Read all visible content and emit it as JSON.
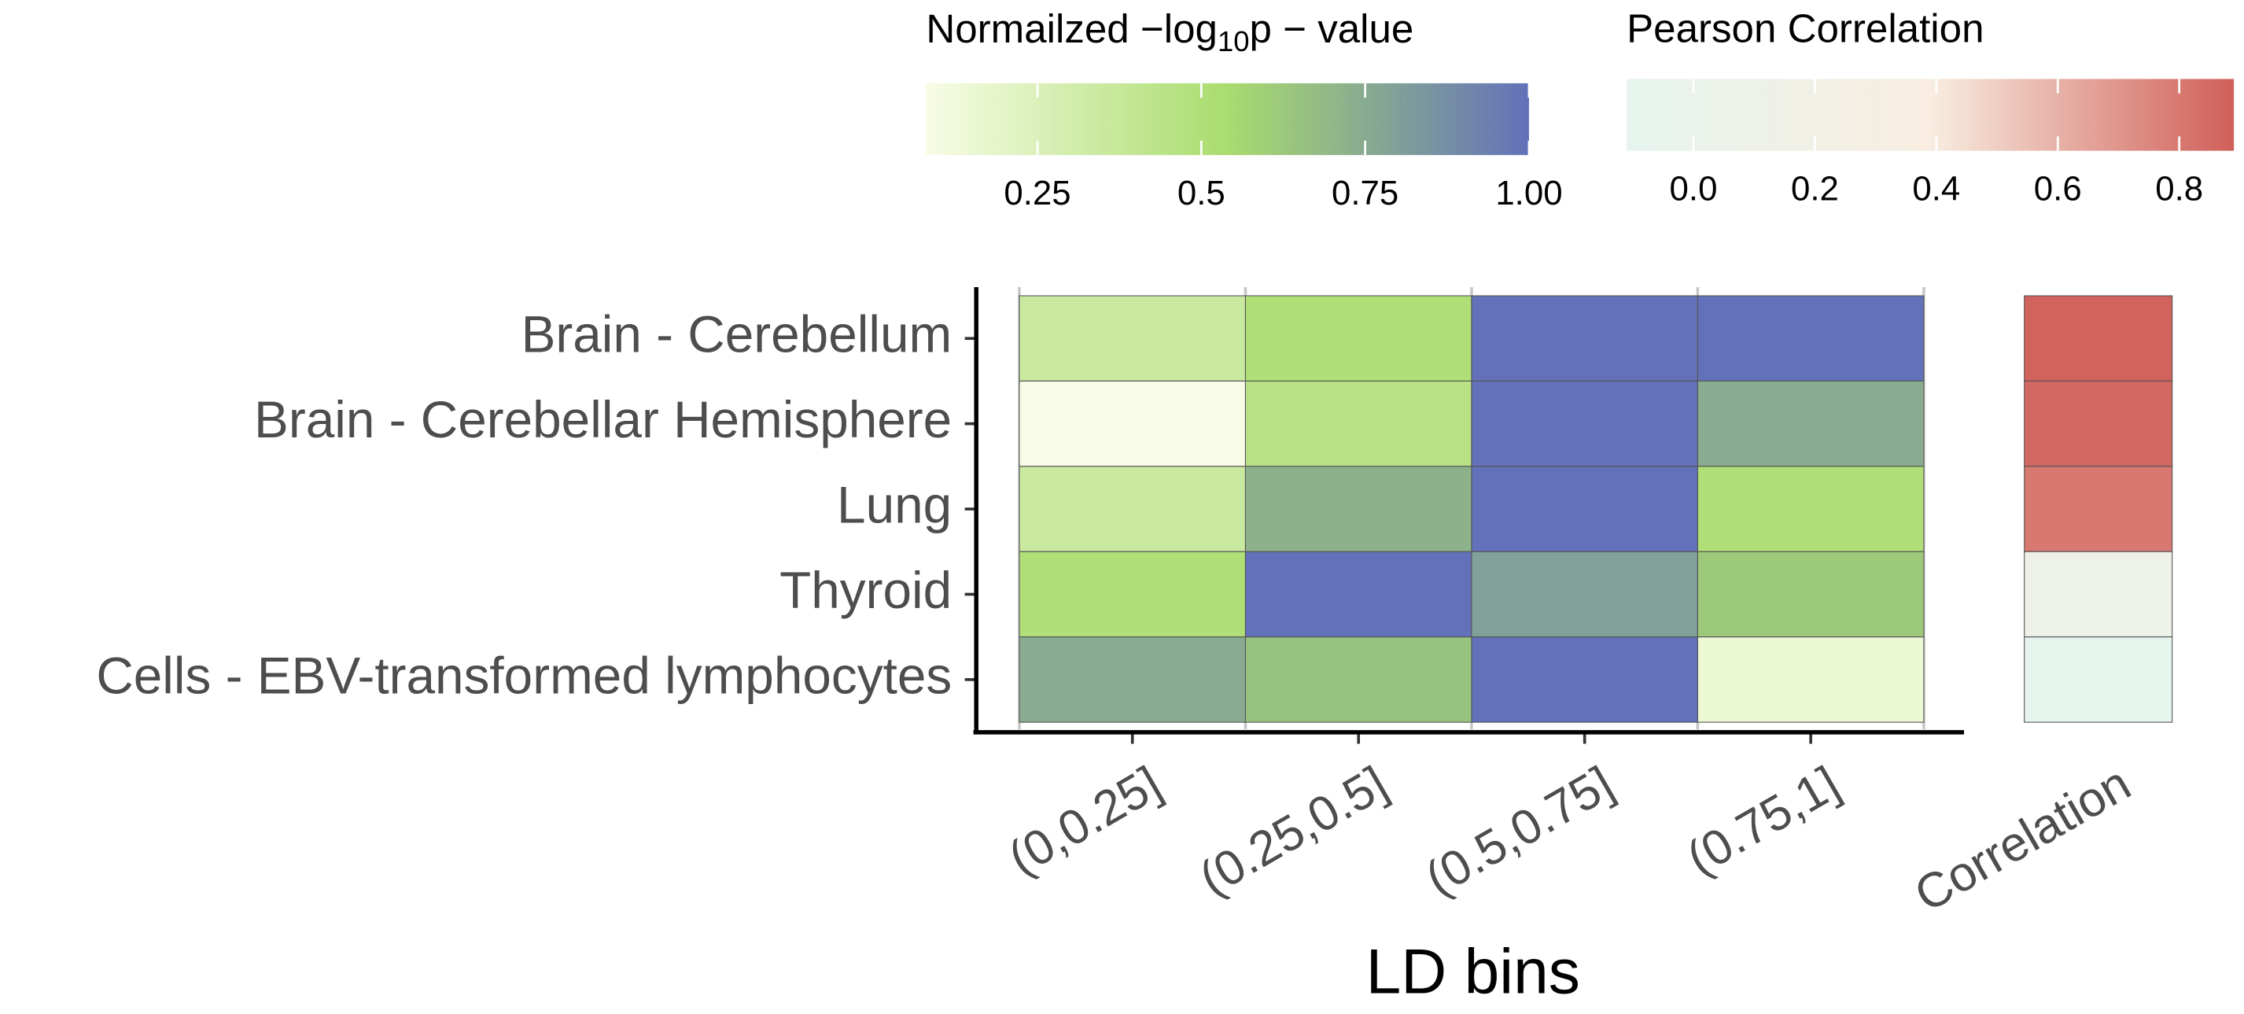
{
  "chart_data": {
    "type": "heatmap",
    "x_label": "LD bins",
    "categories": [
      "(0,0.25]",
      "(0.25,0.5]",
      "(0.5,0.75]",
      "(0.75,1]"
    ],
    "rows": [
      "Brain - Cerebellum",
      "Brain - Cerebellar Hemisphere",
      "Lung",
      "Thyroid",
      "Cells - EBV-transformed lymphocytes"
    ],
    "values": [
      [
        0.35,
        0.5,
        1.0,
        1.0
      ],
      [
        0.08,
        0.45,
        1.0,
        0.75
      ],
      [
        0.35,
        0.72,
        1.0,
        0.5
      ],
      [
        0.5,
        1.0,
        0.8,
        0.62
      ],
      [
        0.75,
        0.65,
        1.0,
        0.15
      ]
    ],
    "legend_title": {
      "prefix": "Normailzed  −log",
      "sub": "10",
      "suffix": "p − value"
    },
    "zlim": [
      0.08,
      1.0
    ],
    "zticks": [
      0.25,
      0.5,
      0.75,
      {
        "value": 1,
        "label": "1.00"
      }
    ],
    "colors": [
      "#f8fce6",
      "#a9dc6e",
      "#6271b9"
    ],
    "correlation": {
      "label": "Correlation",
      "legend_title": "Pearson Correlation",
      "values": [
        0.88,
        0.86,
        0.8,
        0.1,
        -0.1
      ],
      "zlim": [
        -0.11,
        0.89
      ],
      "zticks": [
        {
          "value": 0,
          "label": "0.0"
        },
        0.2,
        0.4,
        0.6,
        0.8
      ],
      "colors": [
        "#e6f4ee",
        "#f8ede0",
        "#d05f59"
      ]
    }
  }
}
